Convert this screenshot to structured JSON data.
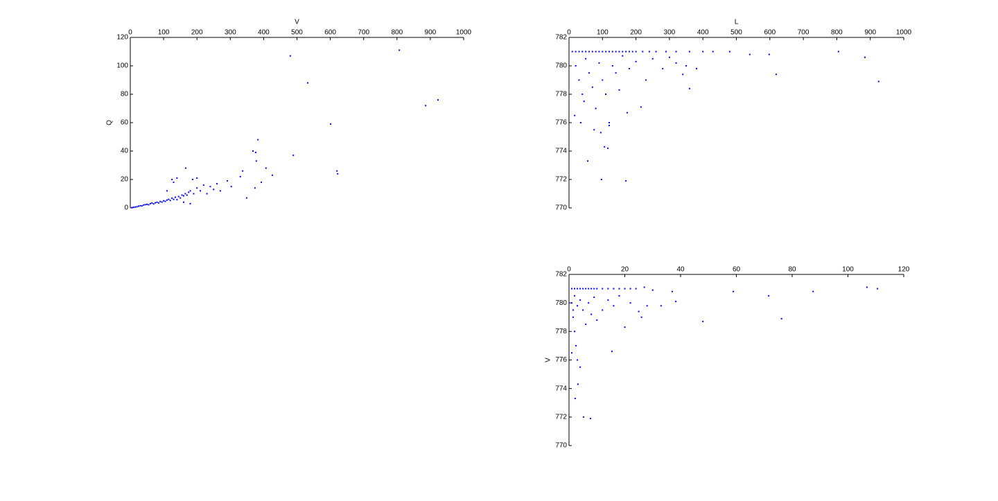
{
  "chart_data": [
    {
      "type": "scatter",
      "xlabel": "V",
      "ylabel": "Q",
      "color": "#0000ff",
      "xlim": [
        0,
        1000
      ],
      "xticks": [
        0,
        100,
        200,
        300,
        400,
        500,
        600,
        700,
        800,
        900,
        1000
      ],
      "ylim": [
        0,
        120
      ],
      "yticks": [
        0,
        20,
        40,
        60,
        80,
        100,
        120
      ],
      "x": [
        480,
        807,
        532,
        886,
        923,
        601,
        489,
        620,
        622,
        383,
        368,
        376,
        378,
        407,
        426,
        337,
        330,
        349,
        374,
        393,
        291,
        303,
        166,
        125,
        187,
        5,
        10,
        15,
        20,
        25,
        30,
        35,
        40,
        45,
        50,
        55,
        60,
        65,
        70,
        75,
        80,
        85,
        90,
        95,
        100,
        105,
        110,
        115,
        120,
        125,
        130,
        135,
        140,
        145,
        150,
        155,
        160,
        165,
        170,
        175,
        180,
        190,
        200,
        210,
        220,
        230,
        240,
        250,
        260,
        270,
        110,
        130,
        140,
        160,
        180,
        200
      ],
      "values": [
        107,
        111,
        88,
        72,
        76,
        59,
        37,
        26,
        24,
        48,
        40,
        39,
        33,
        28,
        23,
        26,
        22,
        7,
        14,
        18,
        19,
        15,
        28,
        20,
        20,
        0.2,
        0.4,
        0.6,
        0.8,
        1.2,
        1.5,
        1.4,
        2,
        2.3,
        2.5,
        2.2,
        3,
        3.4,
        2.8,
        3.6,
        4,
        3.5,
        4.5,
        4.1,
        5,
        4.6,
        5.5,
        6,
        5.2,
        6.8,
        6,
        7.5,
        5.8,
        8,
        7,
        9,
        8.5,
        10,
        9,
        11,
        12,
        10,
        14,
        12,
        16,
        10,
        15,
        13,
        17,
        12,
        12,
        18,
        21,
        4,
        3,
        21
      ]
    },
    {
      "type": "scatter",
      "xlabel": "L",
      "color": "#0000ff",
      "xlim": [
        0,
        1000
      ],
      "xticks": [
        0,
        100,
        200,
        300,
        400,
        500,
        600,
        700,
        800,
        900,
        1000
      ],
      "ylim": [
        770,
        782
      ],
      "yticks": [
        770,
        772,
        774,
        776,
        778,
        780,
        782
      ],
      "x": [
        10,
        20,
        30,
        40,
        50,
        60,
        70,
        80,
        90,
        100,
        110,
        120,
        130,
        140,
        150,
        160,
        170,
        180,
        190,
        200,
        220,
        240,
        260,
        290,
        320,
        360,
        400,
        430,
        480,
        540,
        20,
        30,
        40,
        45,
        50,
        60,
        70,
        80,
        90,
        100,
        110,
        120,
        130,
        140,
        150,
        160,
        180,
        200,
        230,
        250,
        280,
        300,
        320,
        350,
        35,
        75,
        95,
        120,
        805,
        884,
        925,
        619,
        598,
        56,
        97,
        170,
        106,
        116,
        174,
        215,
        17,
        340,
        360,
        381
      ],
      "values": [
        781,
        781,
        781,
        781,
        781,
        781,
        781,
        781,
        781,
        781,
        781,
        781,
        781,
        781,
        781,
        781,
        781,
        781,
        781,
        781,
        781,
        781,
        781,
        781,
        781,
        781,
        781,
        781,
        781,
        780.8,
        780,
        779,
        778,
        777.5,
        780.5,
        779.5,
        778.5,
        777,
        780.2,
        779,
        778,
        776,
        780,
        779.5,
        778.3,
        780.7,
        779.8,
        780.3,
        779,
        780.5,
        779.8,
        780.6,
        780.2,
        780,
        776,
        775.5,
        775.3,
        775.8,
        781,
        780.6,
        778.9,
        779.4,
        780.8,
        773.3,
        772,
        771.9,
        774.3,
        774.2,
        776.7,
        777.1,
        776.5,
        779.4,
        778.4,
        779.8
      ]
    },
    {
      "type": "scatter",
      "ylabel": "V",
      "color": "#0000ff",
      "xlim": [
        0,
        120
      ],
      "xticks": [
        0,
        20,
        40,
        60,
        80,
        100,
        120
      ],
      "ylim": [
        770,
        782
      ],
      "yticks": [
        770,
        772,
        774,
        776,
        778,
        780,
        782
      ],
      "x": [
        1,
        2,
        3,
        4,
        5,
        6,
        7,
        8,
        9,
        10,
        12,
        14,
        16,
        18,
        20,
        22,
        24,
        27,
        30,
        1,
        1.5,
        2,
        2.5,
        1,
        3,
        4,
        1.5,
        2,
        3,
        4,
        5,
        6,
        7,
        8,
        9,
        10,
        12,
        14,
        16,
        18,
        20,
        22,
        25,
        26,
        28,
        33,
        106.8,
        110.6,
        87.5,
        71.6,
        76.2,
        58.9,
        48,
        37,
        38.3,
        15.4,
        7.7,
        5.2,
        2.2,
        3.2
      ],
      "values": [
        781,
        781,
        781,
        781,
        781,
        781,
        781,
        781,
        781,
        781,
        781,
        781,
        781,
        781,
        781,
        781,
        781,
        781.1,
        780.9,
        780,
        779,
        778,
        777,
        776.5,
        776,
        775.5,
        779.5,
        780.5,
        779.8,
        780.2,
        779.5,
        778.5,
        780,
        779.2,
        780.4,
        778.8,
        779.5,
        780.2,
        779.8,
        780.5,
        778.3,
        780,
        779.4,
        779,
        779.8,
        779.8,
        781.1,
        781,
        780.8,
        780.5,
        778.9,
        780.8,
        778.7,
        780.8,
        780.1,
        776.6,
        771.9,
        772,
        773.3,
        774.3
      ]
    }
  ]
}
